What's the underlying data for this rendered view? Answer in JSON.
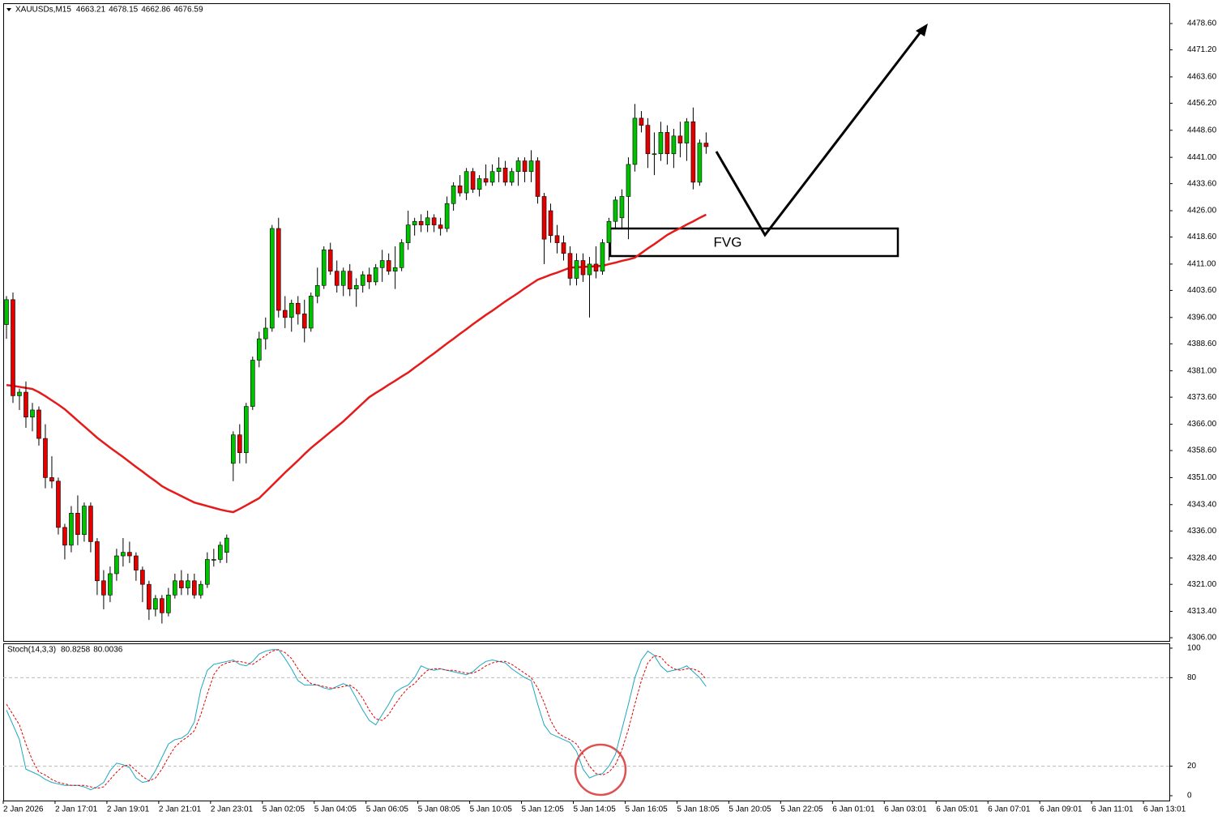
{
  "chart_data": [
    {
      "type": "candlestick",
      "title": "XAUUSDs,M15",
      "info": [
        4663.21,
        4678.15,
        4662.86,
        4676.59
      ],
      "open": [
        4394,
        4401,
        4374,
        4375,
        4368,
        4370,
        4362,
        4351,
        4350,
        4337,
        4332,
        4341,
        4335,
        4343,
        4333,
        4322,
        4318,
        4324,
        4329,
        4330,
        4329,
        4325,
        4321,
        4314,
        4317,
        4313,
        4318,
        4322,
        4320,
        4322,
        4318,
        4321,
        4328,
        4328,
        4330,
        4355,
        4363,
        4358,
        4371,
        4384,
        4390,
        4393,
        4421,
        4398,
        4396,
        4400,
        4397,
        4393,
        4402,
        4405,
        4415,
        4409,
        4405,
        4409,
        4404,
        4405,
        4408,
        4406,
        4410,
        4412,
        4409,
        4410,
        4417,
        4422,
        4423,
        4422,
        4424,
        4422,
        4421,
        4428,
        4433,
        4431,
        4437,
        4432,
        4435,
        4434,
        4437,
        4438,
        4434,
        4437,
        4440,
        4437,
        4440,
        4430,
        4426,
        4419,
        4417,
        4414,
        4407,
        4412,
        4408,
        4411,
        4409,
        4417,
        4423,
        4424,
        4430,
        4439,
        4452,
        4450,
        4442,
        4442,
        4448,
        4442,
        4447,
        4445,
        4451,
        4434,
        4445
      ],
      "high": [
        4402,
        4403,
        4376,
        4378,
        4372,
        4371,
        4366,
        4357,
        4351,
        4338,
        4343,
        4346,
        4344,
        4344,
        4334,
        4325,
        4326,
        4331,
        4334,
        4333,
        4330,
        4326,
        4322,
        4318,
        4318,
        4320,
        4324,
        4325,
        4324,
        4324,
        4322,
        4330,
        4331,
        4333,
        4335,
        4364,
        4366,
        4372,
        4385,
        4392,
        4396,
        4422,
        4424,
        4402,
        4401,
        4402,
        4401,
        4403,
        4410,
        4416,
        4417,
        4412,
        4410,
        4411,
        4407,
        4409,
        4410,
        4411,
        4415,
        4414,
        4416,
        4418,
        4426,
        4424,
        4425,
        4426,
        4425,
        4424,
        4430,
        4434,
        4436,
        4438,
        4438,
        4436,
        4439,
        4439,
        4441,
        4440,
        4438,
        4441,
        4441,
        4443,
        4441,
        4431,
        4428,
        4422,
        4419,
        4416,
        4414,
        4414,
        4413,
        4416,
        4418,
        4424,
        4430,
        4432,
        4441,
        4456,
        4454,
        4452,
        4448,
        4451,
        4450,
        4449,
        4451,
        4452,
        4455,
        4446,
        4448
      ],
      "low": [
        4390,
        4372,
        4370,
        4365,
        4364,
        4360,
        4348,
        4348,
        4335,
        4328,
        4330,
        4332,
        4333,
        4330,
        4318,
        4314,
        4316,
        4322,
        4326,
        4327,
        4322,
        4316,
        4311,
        4312,
        4310,
        4312,
        4317,
        4318,
        4318,
        4317,
        4317,
        4320,
        4326,
        4327,
        4327,
        4350,
        4355,
        4355,
        4370,
        4382,
        4387,
        4392,
        4396,
        4393,
        4392,
        4394,
        4389,
        4392,
        4400,
        4404,
        4408,
        4403,
        4402,
        4402,
        4399,
        4403,
        4404,
        4405,
        4406,
        4408,
        4404,
        4409,
        4415,
        4419,
        4420,
        4420,
        4420,
        4419,
        4420,
        4426,
        4430,
        4429,
        4431,
        4430,
        4433,
        4433,
        4434,
        4433,
        4433,
        4433,
        4434,
        4434,
        4428,
        4411,
        4417,
        4414,
        4412,
        4405,
        4405,
        4406,
        4396,
        4407,
        4408,
        4412,
        4421,
        4421,
        4418,
        4437,
        4448,
        4438,
        4436,
        4440,
        4439,
        4438,
        4441,
        4440,
        4432,
        4433,
        4442
      ],
      "close": [
        4401,
        4374,
        4375,
        4368,
        4370,
        4362,
        4351,
        4350,
        4337,
        4332,
        4341,
        4335,
        4343,
        4333,
        4322,
        4318,
        4324,
        4329,
        4330,
        4329,
        4325,
        4321,
        4314,
        4317,
        4313,
        4318,
        4322,
        4320,
        4322,
        4318,
        4321,
        4328,
        4328,
        4332,
        4334,
        4363,
        4358,
        4371,
        4384,
        4390,
        4393,
        4421,
        4398,
        4396,
        4400,
        4397,
        4393,
        4402,
        4405,
        4415,
        4409,
        4405,
        4409,
        4404,
        4405,
        4408,
        4406,
        4410,
        4412,
        4409,
        4410,
        4417,
        4422,
        4423,
        4422,
        4424,
        4422,
        4421,
        4428,
        4433,
        4431,
        4437,
        4432,
        4435,
        4434,
        4437,
        4438,
        4434,
        4437,
        4440,
        4437,
        4440,
        4430,
        4418,
        4419,
        4417,
        4414,
        4407,
        4412,
        4408,
        4411,
        4409,
        4417,
        4423,
        4429,
        4430,
        4439,
        4452,
        4450,
        4442,
        4442,
        4448,
        4442,
        4447,
        4445,
        4451,
        4434,
        4445,
        4444
      ],
      "up_color": "#00c000",
      "down_color": "#e00000",
      "wick_color": "#000000",
      "overlay": {
        "color": "#e51b1b",
        "values": [
          4377.0,
          4376.8,
          4376.5,
          4376.2,
          4375.9,
          4375.0,
          4373.9,
          4372.7,
          4371.5,
          4370.2,
          4368.6,
          4367.0,
          4365.4,
          4363.8,
          4362.2,
          4360.8,
          4359.4,
          4358.1,
          4356.8,
          4355.4,
          4354.0,
          4352.7,
          4351.3,
          4350.0,
          4348.6,
          4347.6,
          4346.7,
          4345.8,
          4344.9,
          4344.0,
          4343.5,
          4343.0,
          4342.5,
          4342.0,
          4341.6,
          4341.3,
          4342.2,
          4343.2,
          4344.2,
          4345.2,
          4347.0,
          4348.8,
          4350.6,
          4352.4,
          4354.1,
          4355.8,
          4357.6,
          4359.3,
          4360.8,
          4362.3,
          4363.8,
          4365.3,
          4366.8,
          4368.5,
          4370.2,
          4371.9,
          4373.6,
          4374.8,
          4375.9,
          4377.1,
          4378.2,
          4379.4,
          4380.5,
          4381.9,
          4383.2,
          4384.6,
          4385.9,
          4387.3,
          4388.7,
          4390.0,
          4391.4,
          4392.7,
          4394.1,
          4395.4,
          4396.7,
          4397.9,
          4399.2,
          4400.5,
          4401.7,
          4402.9,
          4404.2,
          4405.4,
          4406.6,
          4407.3,
          4408.0,
          4408.6,
          4409.3,
          4410.0,
          4410.1,
          4410.2,
          4410.3,
          4410.4,
          4410.5,
          4411.0,
          4411.4,
          4411.9,
          4412.3,
          4412.8,
          4414.1,
          4415.4,
          4416.6,
          4417.9,
          4419.2,
          4420.2,
          4421.1,
          4422.1,
          4423.0,
          4424.0,
          4424.9
        ]
      },
      "annotation": "FVG",
      "ylim": [
        4305.1,
        4484.3
      ],
      "yticks": [
        {
          "value": 4306,
          "label": "4306.00"
        },
        {
          "value": 4313.4,
          "label": "4313.40"
        },
        {
          "value": 4321,
          "label": "4321.00"
        },
        {
          "value": 4328.4,
          "label": "4328.40"
        },
        {
          "value": 4336,
          "label": "4336.00"
        },
        {
          "value": 4343.4,
          "label": "4343.40"
        },
        {
          "value": 4351,
          "label": "4351.00"
        },
        {
          "value": 4358.6,
          "label": "4358.60"
        },
        {
          "value": 4366,
          "label": "4366.00"
        },
        {
          "value": 4373.6,
          "label": "4373.60"
        },
        {
          "value": 4381,
          "label": "4381.00"
        },
        {
          "value": 4388.6,
          "label": "4388.60"
        },
        {
          "value": 4396,
          "label": "4396.00"
        },
        {
          "value": 4403.6,
          "label": "4403.60"
        },
        {
          "value": 4411,
          "label": "4411.00"
        },
        {
          "value": 4418.6,
          "label": "4418.60"
        },
        {
          "value": 4426,
          "label": "4426.00"
        },
        {
          "value": 4433.6,
          "label": "4433.60"
        },
        {
          "value": 4441,
          "label": "4441.00"
        },
        {
          "value": 4448.6,
          "label": "4448.60"
        },
        {
          "value": 4456.2,
          "label": "4456.20"
        },
        {
          "value": 4463.6,
          "label": "4463.60"
        },
        {
          "value": 4471.2,
          "label": "4471.20"
        },
        {
          "value": 4478.6,
          "label": "4478.60"
        }
      ],
      "xlim": [
        0,
        180
      ],
      "xticks": [
        {
          "value": 0,
          "label": "2 Jan 2026"
        },
        {
          "value": 8,
          "label": "2 Jan 17:01"
        },
        {
          "value": 16,
          "label": "2 Jan 19:01"
        },
        {
          "value": 24,
          "label": "2 Jan 21:01"
        },
        {
          "value": 32,
          "label": "2 Jan 23:01"
        },
        {
          "value": 40,
          "label": "5 Jan 02:05"
        },
        {
          "value": 48,
          "label": "5 Jan 04:05"
        },
        {
          "value": 56,
          "label": "5 Jan 06:05"
        },
        {
          "value": 64,
          "label": "5 Jan 08:05"
        },
        {
          "value": 72,
          "label": "5 Jan 10:05"
        },
        {
          "value": 80,
          "label": "5 Jan 12:05"
        },
        {
          "value": 88,
          "label": "5 Jan 14:05"
        },
        {
          "value": 96,
          "label": "5 Jan 16:05"
        },
        {
          "value": 104,
          "label": "5 Jan 18:05"
        },
        {
          "value": 112,
          "label": "5 Jan 20:05"
        },
        {
          "value": 120,
          "label": "5 Jan 22:05"
        },
        {
          "value": 128,
          "label": "6 Jan 01:01"
        },
        {
          "value": 136,
          "label": "6 Jan 03:01"
        },
        {
          "value": 144,
          "label": "6 Jan 05:01"
        },
        {
          "value": 152,
          "label": "6 Jan 07:01"
        },
        {
          "value": 160,
          "label": "6 Jan 09:01"
        },
        {
          "value": 168,
          "label": "6 Jan 11:01"
        },
        {
          "value": 176,
          "label": "6 Jan 13:01"
        }
      ]
    },
    {
      "type": "line",
      "title": "Stoch(14,3,3)",
      "info": [
        80.8258,
        80.0036
      ],
      "series": [
        {
          "color": "#1ea7c0",
          "dashed": false,
          "values": [
            58,
            48,
            38,
            18,
            16,
            14,
            11,
            9,
            8,
            7,
            7,
            7,
            6,
            4,
            6,
            9,
            17,
            22,
            21,
            19,
            12,
            9,
            10,
            17,
            26,
            35,
            38,
            39,
            42,
            50,
            72,
            85,
            89,
            90,
            91,
            92,
            89,
            88,
            91,
            96,
            98,
            99,
            99,
            93,
            86,
            78,
            75,
            75,
            75,
            73,
            72,
            74,
            76,
            74,
            66,
            58,
            51,
            48,
            55,
            62,
            70,
            73,
            75,
            80,
            88,
            86,
            85,
            86,
            85,
            84,
            83,
            82,
            84,
            88,
            91,
            92,
            91,
            90,
            86,
            83,
            80,
            78,
            62,
            48,
            42,
            40,
            38,
            36,
            30,
            18,
            12,
            14,
            15,
            20,
            28,
            45,
            62,
            80,
            92,
            98,
            95,
            88,
            84,
            85,
            86,
            88,
            84,
            80,
            74
          ]
        },
        {
          "color": "#e00000",
          "dashed": true,
          "values": [
            62,
            55,
            48,
            35,
            24,
            16,
            14,
            11,
            9,
            8,
            7,
            7,
            7,
            6,
            5,
            6,
            11,
            16,
            20,
            21,
            17,
            13,
            10,
            12,
            18,
            26,
            33,
            37,
            40,
            44,
            55,
            69,
            82,
            88,
            90,
            91,
            91,
            90,
            89,
            92,
            95,
            98,
            99,
            97,
            93,
            86,
            80,
            76,
            75,
            74,
            73,
            73,
            74,
            75,
            72,
            66,
            58,
            52,
            51,
            55,
            62,
            68,
            73,
            76,
            81,
            85,
            86,
            86,
            85,
            85,
            84,
            83,
            83,
            85,
            88,
            90,
            91,
            91,
            89,
            86,
            83,
            80,
            73,
            63,
            51,
            43,
            40,
            38,
            35,
            28,
            20,
            15,
            14,
            16,
            21,
            31,
            45,
            62,
            78,
            90,
            95,
            94,
            89,
            86,
            85,
            86,
            86,
            84,
            79
          ]
        }
      ],
      "levels": [
        20,
        80
      ],
      "ylim": [
        -3.3,
        102.7
      ],
      "yticks": [
        0,
        20,
        80,
        100
      ]
    }
  ]
}
